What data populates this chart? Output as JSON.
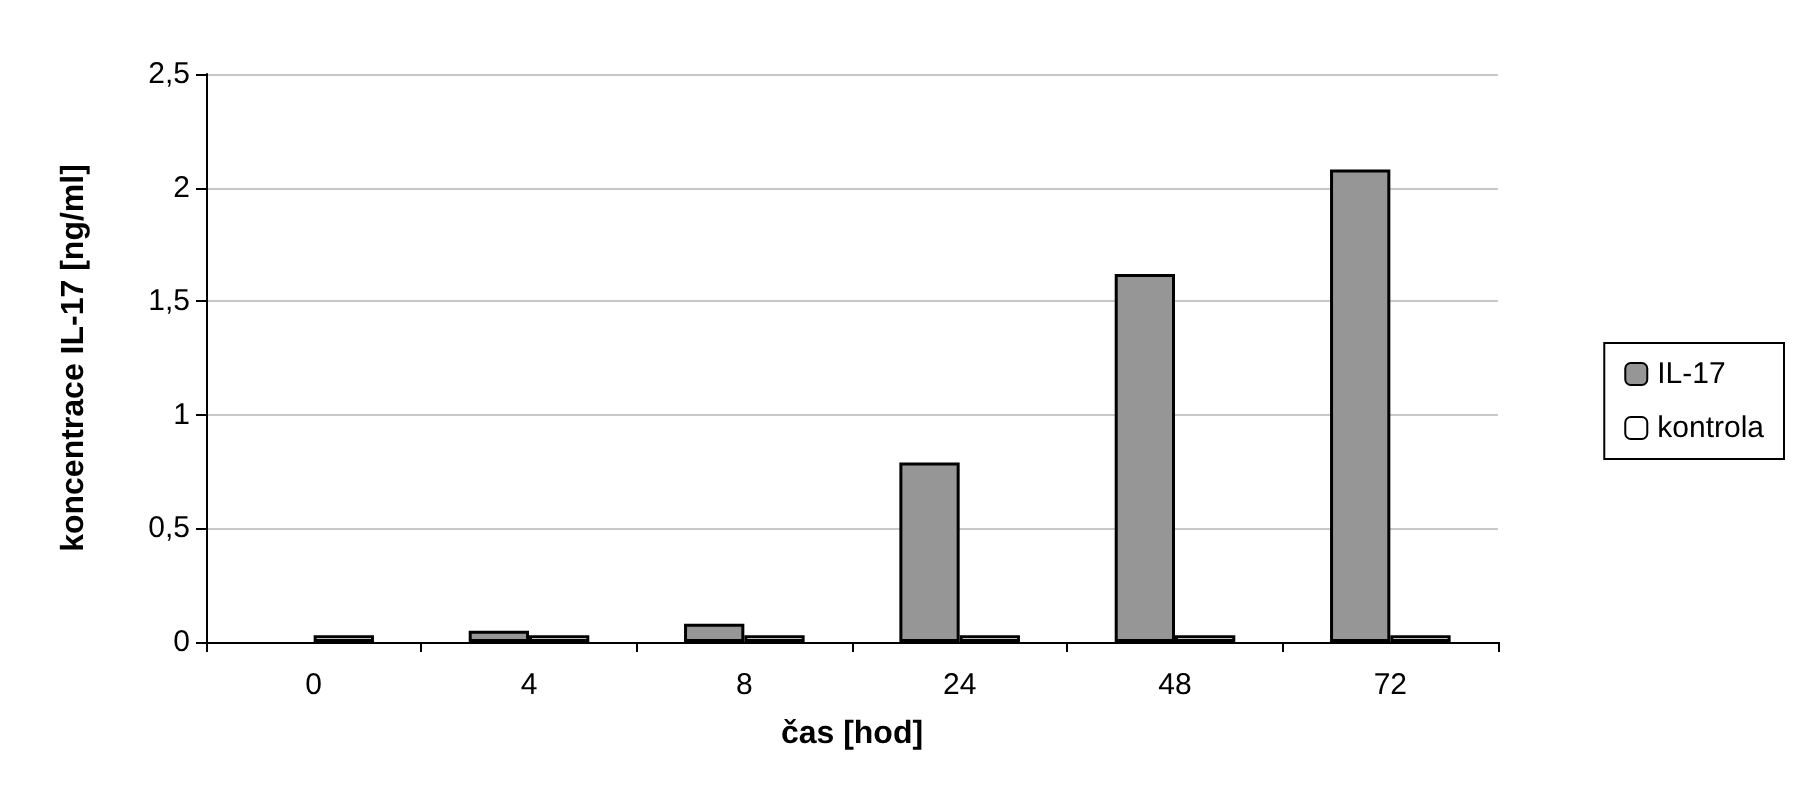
{
  "chart_data": {
    "type": "bar",
    "xlabel": "čas [hod]",
    "ylabel": "koncentrace IL-17 [ng/ml]",
    "categories": [
      "0",
      "4",
      "8",
      "24",
      "48",
      "72"
    ],
    "series": [
      {
        "name": "IL-17",
        "color": "#969696",
        "values": [
          0,
          0.05,
          0.08,
          0.79,
          1.62,
          2.08
        ]
      },
      {
        "name": "kontrola",
        "color": "#ffffff",
        "values": [
          0.03,
          0.03,
          0.03,
          0.03,
          0.03,
          0.03
        ]
      }
    ],
    "ylim": [
      0,
      2.5
    ],
    "yticks": [
      0,
      {
        "value": 0.5,
        "label": "0,5"
      },
      1,
      {
        "value": 1.5,
        "label": "1,5"
      },
      2,
      {
        "value": 2.5,
        "label": "2,5"
      }
    ],
    "grid": "y",
    "legend": "right"
  }
}
